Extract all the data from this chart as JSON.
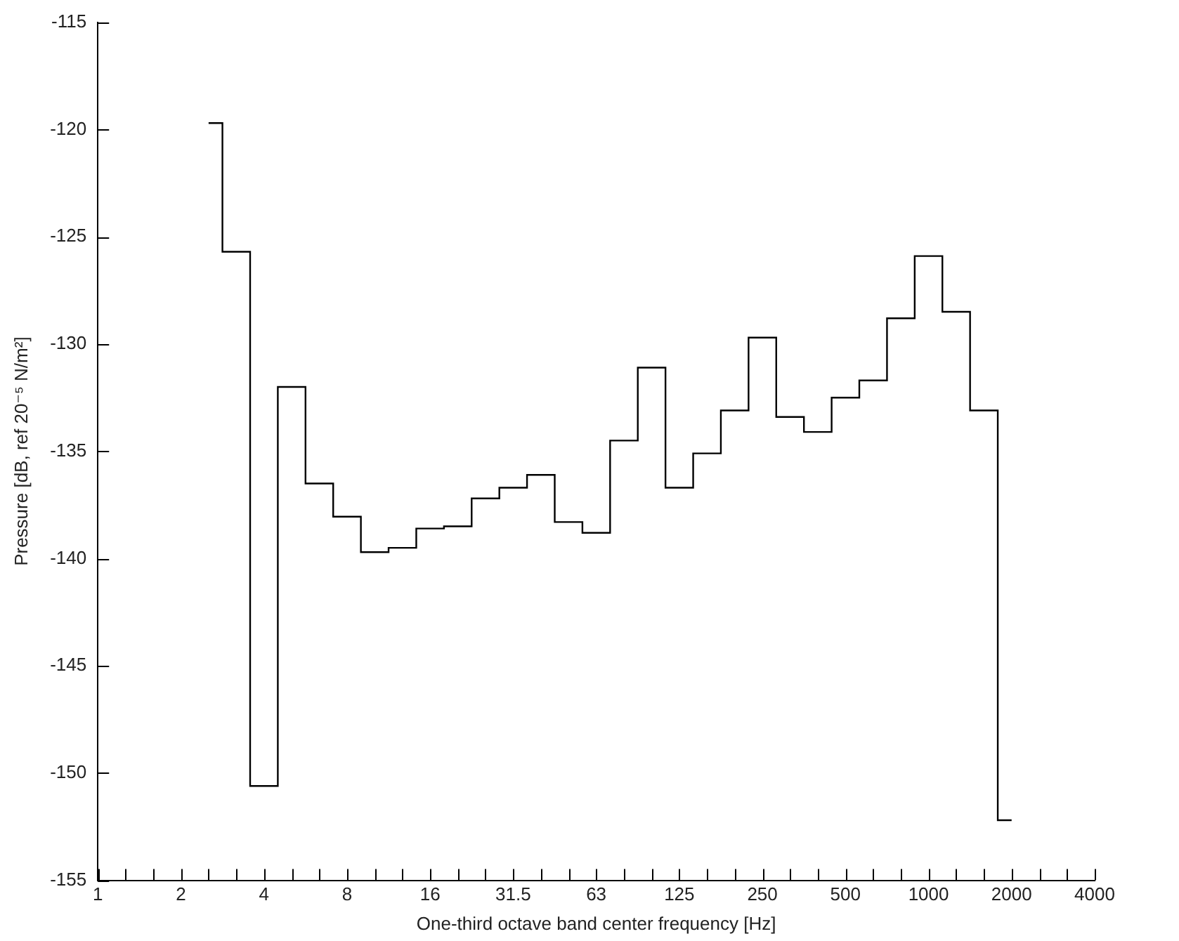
{
  "chart_data": {
    "type": "step",
    "xlabel": "One-third octave band center frequency [Hz]",
    "ylabel": "Pressure [dB, ref 20⁻⁵ N/m²]",
    "categories": [
      "1",
      null,
      null,
      "2",
      null,
      null,
      "4",
      null,
      null,
      "8",
      null,
      null,
      "16",
      null,
      null,
      "31.5",
      null,
      null,
      "63",
      null,
      null,
      "125",
      null,
      null,
      "250",
      null,
      null,
      "500",
      null,
      null,
      "1000",
      null,
      null,
      "2000",
      null,
      null,
      "4000"
    ],
    "values": [
      null,
      null,
      null,
      null,
      -119.7,
      -125.7,
      -150.6,
      -132.0,
      -136.5,
      -138.05,
      -139.7,
      -139.5,
      -138.6,
      -138.5,
      -137.2,
      -136.7,
      -136.1,
      -138.3,
      -138.8,
      -134.5,
      -131.1,
      -136.7,
      -135.1,
      -133.1,
      -129.7,
      -133.4,
      -134.1,
      -132.5,
      -131.7,
      -128.8,
      -125.9,
      -128.5,
      -133.1,
      -152.2,
      null,
      null,
      null
    ],
    "color": "#000000",
    "ylim": [
      -155,
      -115
    ],
    "yticks": [
      -155,
      -150,
      -145,
      -140,
      -135,
      -130,
      -125,
      -120,
      -115
    ]
  }
}
